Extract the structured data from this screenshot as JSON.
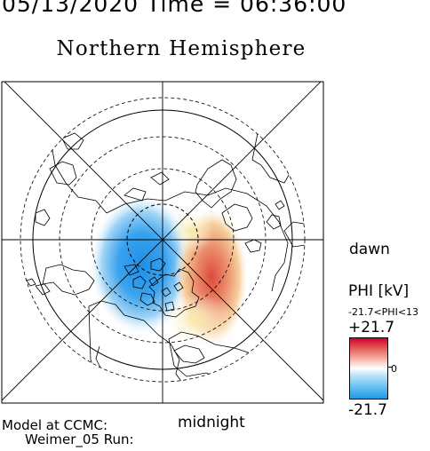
{
  "header": {
    "datetime": "05/13/2020 Time = 06:36:00",
    "title": "Northern Hemisphere"
  },
  "labels": {
    "dawn": "dawn",
    "midnight": "midnight",
    "model": "Model at CCMC:",
    "run": "Weimer_05 Run:"
  },
  "colorbar": {
    "label": "PHI [kV]",
    "range": "-21.7<PHI<13",
    "max": "+21.7",
    "min": "-21.7",
    "zero": "0",
    "colors": [
      "#d0002c",
      "#ffffff",
      "#1e9ae6"
    ]
  }
}
